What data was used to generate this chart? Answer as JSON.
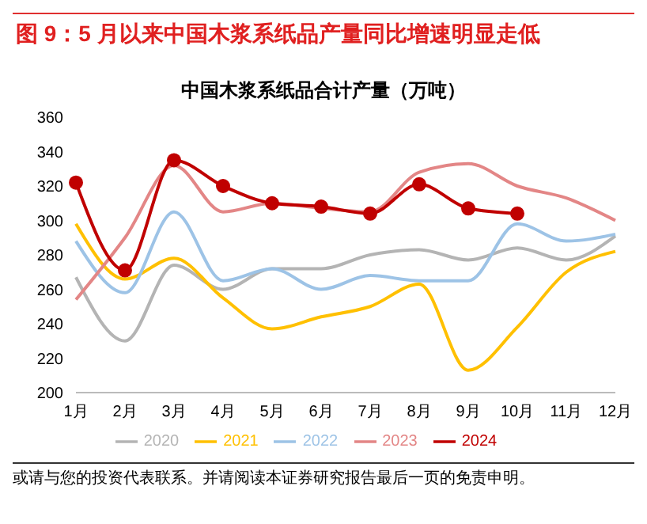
{
  "chart_data": {
    "type": "line",
    "title": "图 9：5 月以来中国木浆系纸品产量同比增速明显走低",
    "subtitle": "中国木浆系纸品合计产量（万吨）",
    "categories": [
      "1月",
      "2月",
      "3月",
      "4月",
      "5月",
      "6月",
      "7月",
      "8月",
      "9月",
      "10月",
      "11月",
      "12月"
    ],
    "series": [
      {
        "name": "2020",
        "color": "#b4b4b4",
        "marker": "none",
        "values": [
          267,
          230,
          274,
          260,
          272,
          272,
          280,
          283,
          277,
          284,
          277,
          291
        ]
      },
      {
        "name": "2021",
        "color": "#ffc000",
        "marker": "none",
        "values": [
          298,
          266,
          278,
          255,
          237,
          244,
          250,
          263,
          213,
          238,
          270,
          282
        ]
      },
      {
        "name": "2022",
        "color": "#9dc3e6",
        "marker": "none",
        "values": [
          288,
          258,
          305,
          265,
          272,
          260,
          268,
          265,
          265,
          298,
          288,
          292
        ]
      },
      {
        "name": "2023",
        "color": "#e38686",
        "marker": "none",
        "values": [
          254,
          290,
          332,
          305,
          310,
          307,
          305,
          328,
          333,
          320,
          313,
          300
        ]
      },
      {
        "name": "2024",
        "color": "#c00000",
        "marker": "circle",
        "values": [
          322,
          271,
          335,
          320,
          310,
          308,
          304,
          321,
          307,
          304,
          null,
          null
        ]
      }
    ],
    "ylim": [
      200,
      360
    ],
    "yticks": [
      200,
      220,
      240,
      260,
      280,
      300,
      320,
      340,
      360
    ],
    "grid": false,
    "legend": "bottom",
    "annotations": [
      "或请与您的投资代表联系。并请阅读本证券研究报告最后一页的免责申明。"
    ]
  }
}
